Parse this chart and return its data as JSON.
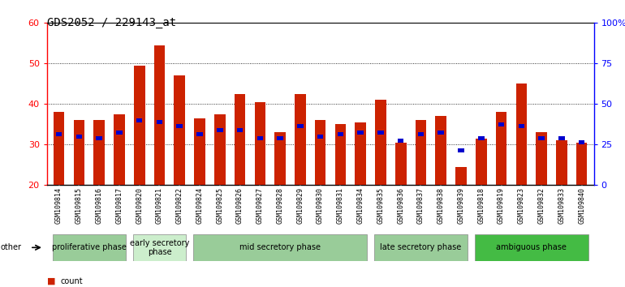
{
  "title": "GDS2052 / 229143_at",
  "samples": [
    "GSM109814",
    "GSM109815",
    "GSM109816",
    "GSM109817",
    "GSM109820",
    "GSM109821",
    "GSM109822",
    "GSM109824",
    "GSM109825",
    "GSM109826",
    "GSM109827",
    "GSM109828",
    "GSM109829",
    "GSM109830",
    "GSM109831",
    "GSM109834",
    "GSM109835",
    "GSM109836",
    "GSM109837",
    "GSM109838",
    "GSM109839",
    "GSM109818",
    "GSM109819",
    "GSM109823",
    "GSM109832",
    "GSM109833",
    "GSM109840"
  ],
  "count_values": [
    38,
    36,
    36,
    37.5,
    49.5,
    54.5,
    47,
    36.5,
    37.5,
    42.5,
    40.5,
    33,
    42.5,
    36,
    35,
    35.5,
    41,
    30.5,
    36,
    37,
    24.5,
    31.5,
    38,
    45,
    33,
    31,
    30.5
  ],
  "percentile_values": [
    32.5,
    32,
    31.5,
    33,
    36,
    35.5,
    34.5,
    32.5,
    33.5,
    33.5,
    31.5,
    31.5,
    34.5,
    32,
    32.5,
    33,
    33,
    31,
    32.5,
    33,
    28.5,
    31.5,
    35,
    34.5,
    31.5,
    31.5,
    30.5
  ],
  "phases": [
    {
      "label": "proliferative phase",
      "start": 0,
      "end": 4,
      "color": "#99cc99"
    },
    {
      "label": "early secretory\nphase",
      "start": 4,
      "end": 7,
      "color": "#cceecc"
    },
    {
      "label": "mid secretory phase",
      "start": 7,
      "end": 16,
      "color": "#99cc99"
    },
    {
      "label": "late secretory phase",
      "start": 16,
      "end": 21,
      "color": "#99cc99"
    },
    {
      "label": "ambiguous phase",
      "start": 21,
      "end": 27,
      "color": "#44bb44"
    }
  ],
  "ylim_left": [
    20,
    60
  ],
  "ylim_right": [
    0,
    100
  ],
  "yticks_left": [
    20,
    30,
    40,
    50,
    60
  ],
  "yticks_right": [
    0,
    25,
    50,
    75,
    100
  ],
  "ylabel_right_labels": [
    "0",
    "25",
    "50",
    "75",
    "100%"
  ],
  "bar_color": "#cc2200",
  "percentile_color": "#0000cc",
  "bar_width": 0.55,
  "other_label": "other",
  "legend_count_color": "#cc2200",
  "legend_percentile_color": "#0000cc",
  "tick_bg_color": "#cccccc",
  "plot_bg_color": "#ffffff",
  "title_fontsize": 10,
  "tick_fontsize": 6,
  "phase_fontsize": 7
}
